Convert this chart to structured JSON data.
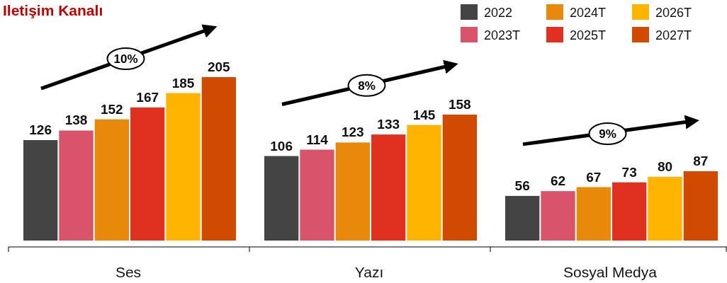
{
  "chart_data": {
    "type": "bar",
    "title": "Iletişim Kanalı",
    "categories": [
      "Ses",
      "Yazı",
      "Sosyal Medya"
    ],
    "series": [
      {
        "name": "2022",
        "color": "#444444",
        "values": [
          126,
          106,
          56
        ]
      },
      {
        "name": "2023T",
        "color": "#d9536b",
        "values": [
          138,
          114,
          62
        ]
      },
      {
        "name": "2024T",
        "color": "#e8890c",
        "values": [
          152,
          123,
          67
        ]
      },
      {
        "name": "2025T",
        "color": "#e03020",
        "values": [
          167,
          133,
          73
        ]
      },
      {
        "name": "2026T",
        "color": "#ffb400",
        "values": [
          185,
          145,
          80
        ]
      },
      {
        "name": "2027T",
        "color": "#d04a02",
        "values": [
          205,
          158,
          87
        ]
      }
    ],
    "data_labels": true,
    "legend": "top right",
    "grid": false,
    "annotations": [
      "10%",
      "8%",
      "9%"
    ]
  }
}
